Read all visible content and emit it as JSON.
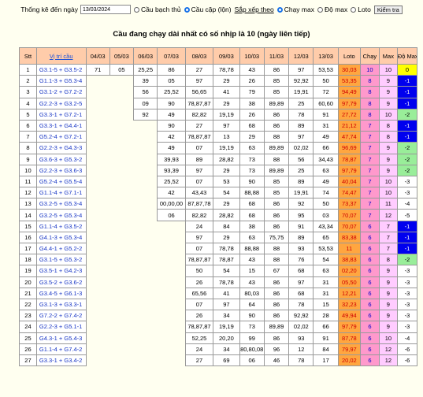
{
  "toolbar": {
    "date_label": "Thống kê đến ngày",
    "date_value": "13/03/2024",
    "options": [
      {
        "label": "Cầu bạch thủ",
        "selected": false
      },
      {
        "label": "Cầu cặp (lộn)",
        "selected": true
      }
    ],
    "sort_label": "Sắp xếp theo",
    "sort_options": [
      {
        "label": "Chạy max",
        "selected": true
      },
      {
        "label": "Độ max",
        "selected": false
      },
      {
        "label": "Loto",
        "selected": false
      }
    ],
    "check_button": "Kiểm tra"
  },
  "title": "Cầu đang chạy dài nhất có số nhịp là 10 (ngày liên tiếp)",
  "headers": [
    "Stt",
    "Vị trí cầu",
    "04/03",
    "05/03",
    "06/03",
    "07/03",
    "08/03",
    "09/03",
    "10/03",
    "11/03",
    "12/03",
    "13/03",
    "Loto",
    "Chạy",
    "Max",
    "Độ Max"
  ],
  "colors": {
    "header": "#ffccaa",
    "loto": "#ffa640",
    "chay": "#ff99cc",
    "max": "#ffccff",
    "yellow": "#ffff00",
    "blue": "#0000ee",
    "green": "#99ee99"
  },
  "rows": [
    {
      "stt": "1",
      "pos": "G3.1-5 + G3.5-2",
      "d": [
        "71",
        "05",
        "25,25",
        "86",
        "27",
        "78,78",
        "43",
        "86",
        "97",
        "53,53"
      ],
      "loto": "30,03",
      "chay": "10",
      "max": "10",
      "dm": "0",
      "dmc": "y"
    },
    {
      "stt": "2",
      "pos": "G1.1-3 + G5.3-4",
      "d": [
        "",
        "",
        "39",
        "05",
        "97",
        "29",
        "26",
        "85",
        "92,92",
        "50"
      ],
      "loto": "53,35",
      "chay": "8",
      "max": "9",
      "dm": "-1",
      "dmc": "b"
    },
    {
      "stt": "3",
      "pos": "G3.1-2 + G7.2-2",
      "d": [
        "",
        "",
        "56",
        "25,52",
        "56,65",
        "41",
        "79",
        "85",
        "19,91",
        "72"
      ],
      "loto": "94,49",
      "chay": "8",
      "max": "9",
      "dm": "-1",
      "dmc": "b"
    },
    {
      "stt": "4",
      "pos": "G2.2-3 + G3.2-5",
      "d": [
        "",
        "",
        "09",
        "90",
        "78,87,87",
        "29",
        "38",
        "89,89",
        "25",
        "60,60"
      ],
      "loto": "97,79",
      "chay": "8",
      "max": "9",
      "dm": "-1",
      "dmc": "b"
    },
    {
      "stt": "5",
      "pos": "G3.3-1 + G7.2-1",
      "d": [
        "",
        "",
        "92",
        "49",
        "82,82",
        "19,19",
        "26",
        "86",
        "78",
        "91"
      ],
      "loto": "27,72",
      "chay": "8",
      "max": "10",
      "dm": "-2",
      "dmc": "g"
    },
    {
      "stt": "6",
      "pos": "G3.3-1 + G4.4-1",
      "d": [
        "",
        "",
        "",
        "90",
        "27",
        "97",
        "68",
        "86",
        "89",
        "31"
      ],
      "loto": "21,12",
      "chay": "7",
      "max": "8",
      "dm": "-1",
      "dmc": "b"
    },
    {
      "stt": "7",
      "pos": "G5.2-4 + G7.2-1",
      "d": [
        "",
        "",
        "",
        "42",
        "78,87,87",
        "13",
        "29",
        "88",
        "97",
        "49"
      ],
      "loto": "47,74",
      "chay": "7",
      "max": "8",
      "dm": "-1",
      "dmc": "b"
    },
    {
      "stt": "8",
      "pos": "G2.2-3 + G4.3-3",
      "d": [
        "",
        "",
        "",
        "49",
        "07",
        "19,19",
        "63",
        "89,89",
        "02,02",
        "66"
      ],
      "loto": "96,69",
      "chay": "7",
      "max": "9",
      "dm": "-2",
      "dmc": "g"
    },
    {
      "stt": "9",
      "pos": "G3.6-3 + G5.3-2",
      "d": [
        "",
        "",
        "",
        "39,93",
        "89",
        "28,82",
        "73",
        "88",
        "56",
        "34,43"
      ],
      "loto": "78,87",
      "chay": "7",
      "max": "9",
      "dm": "-2",
      "dmc": "g"
    },
    {
      "stt": "10",
      "pos": "G2.2-3 + G3.6-3",
      "d": [
        "",
        "",
        "",
        "93,39",
        "97",
        "29",
        "73",
        "89,89",
        "25",
        "63"
      ],
      "loto": "97,79",
      "chay": "7",
      "max": "9",
      "dm": "-2",
      "dmc": "g"
    },
    {
      "stt": "11",
      "pos": "G5.2-4 + G5.5-4",
      "d": [
        "",
        "",
        "",
        "25,52",
        "07",
        "53",
        "90",
        "85",
        "89",
        "49"
      ],
      "loto": "40,04",
      "chay": "7",
      "max": "10",
      "dm": "-3",
      "dmc": "w"
    },
    {
      "stt": "12",
      "pos": "G1.1-4 + G7.1-1",
      "d": [
        "",
        "",
        "",
        "42",
        "43,43",
        "54",
        "88,88",
        "85",
        "19,91",
        "74"
      ],
      "loto": "74,47",
      "chay": "7",
      "max": "10",
      "dm": "-3",
      "dmc": "w"
    },
    {
      "stt": "13",
      "pos": "G3.2-5 + G5.3-4",
      "d": [
        "",
        "",
        "",
        "00,00,00",
        "87,87,78",
        "29",
        "68",
        "86",
        "92",
        "50"
      ],
      "loto": "73,37",
      "chay": "7",
      "max": "11",
      "dm": "-4",
      "dmc": "w"
    },
    {
      "stt": "14",
      "pos": "G3.2-5 + G5.3-4",
      "d": [
        "",
        "",
        "",
        "06",
        "82,82",
        "28,82",
        "68",
        "86",
        "95",
        "03"
      ],
      "loto": "70,07",
      "chay": "7",
      "max": "12",
      "dm": "-5",
      "dmc": "w"
    },
    {
      "stt": "15",
      "pos": "G1.1-4 + G3.5-2",
      "d": [
        "",
        "",
        "",
        "",
        "24",
        "84",
        "38",
        "86",
        "91",
        "43,34"
      ],
      "loto": "70,07",
      "chay": "6",
      "max": "7",
      "dm": "-1",
      "dmc": "b"
    },
    {
      "stt": "16",
      "pos": "G4.1-3 + G5.3-4",
      "d": [
        "",
        "",
        "",
        "",
        "97",
        "29",
        "63",
        "75,75",
        "89",
        "65"
      ],
      "loto": "83,38",
      "chay": "6",
      "max": "7",
      "dm": "-1",
      "dmc": "b"
    },
    {
      "stt": "17",
      "pos": "G4.4-1 + G5.2-2",
      "d": [
        "",
        "",
        "",
        "",
        "07",
        "78,78",
        "88,88",
        "88",
        "93",
        "53,53"
      ],
      "loto": "11",
      "chay": "6",
      "max": "7",
      "dm": "-1",
      "dmc": "b"
    },
    {
      "stt": "18",
      "pos": "G3.1-5 + G5.3-2",
      "d": [
        "",
        "",
        "",
        "",
        "78,87,87",
        "78,87",
        "43",
        "88",
        "76",
        "54"
      ],
      "loto": "38,83",
      "chay": "6",
      "max": "8",
      "dm": "-2",
      "dmc": "g"
    },
    {
      "stt": "19",
      "pos": "G3.5-1 + G4.2-3",
      "d": [
        "",
        "",
        "",
        "",
        "50",
        "54",
        "15",
        "67",
        "68",
        "63"
      ],
      "loto": "02,20",
      "chay": "6",
      "max": "9",
      "dm": "-3",
      "dmc": "w"
    },
    {
      "stt": "20",
      "pos": "G3.5-2 + G3.6-2",
      "d": [
        "",
        "",
        "",
        "",
        "26",
        "78,78",
        "43",
        "86",
        "97",
        "31"
      ],
      "loto": "05,50",
      "chay": "6",
      "max": "9",
      "dm": "-3",
      "dmc": "w"
    },
    {
      "stt": "21",
      "pos": "G3.4-5 + G6.1-3",
      "d": [
        "",
        "",
        "",
        "",
        "65,56",
        "41",
        "80,03",
        "86",
        "68",
        "31"
      ],
      "loto": "12,21",
      "chay": "6",
      "max": "9",
      "dm": "-3",
      "dmc": "w"
    },
    {
      "stt": "22",
      "pos": "G3.1-3 + G3.3-1",
      "d": [
        "",
        "",
        "",
        "",
        "07",
        "97",
        "64",
        "86",
        "78",
        "15"
      ],
      "loto": "32,23",
      "chay": "6",
      "max": "9",
      "dm": "-3",
      "dmc": "w"
    },
    {
      "stt": "23",
      "pos": "G7.2-2 + G7.4-2",
      "d": [
        "",
        "",
        "",
        "",
        "26",
        "34",
        "90",
        "86",
        "92,92",
        "28"
      ],
      "loto": "49,94",
      "chay": "6",
      "max": "9",
      "dm": "-3",
      "dmc": "w"
    },
    {
      "stt": "24",
      "pos": "G2.2-3 + G5.1-1",
      "d": [
        "",
        "",
        "",
        "",
        "78,87,87",
        "19,19",
        "73",
        "89,89",
        "02,02",
        "66"
      ],
      "loto": "97,79",
      "chay": "6",
      "max": "9",
      "dm": "-3",
      "dmc": "w"
    },
    {
      "stt": "25",
      "pos": "G4.3-1 + G5.4-3",
      "d": [
        "",
        "",
        "",
        "",
        "52,25",
        "20,20",
        "99",
        "86",
        "93",
        "91"
      ],
      "loto": "87,78",
      "chay": "6",
      "max": "10",
      "dm": "-4",
      "dmc": "w"
    },
    {
      "stt": "26",
      "pos": "G1.1-4 + G7.4-2",
      "d": [
        "",
        "",
        "",
        "",
        "24",
        "34",
        "80,80,08",
        "96",
        "12",
        "84"
      ],
      "loto": "79,97",
      "chay": "6",
      "max": "12",
      "dm": "-6",
      "dmc": "w"
    },
    {
      "stt": "27",
      "pos": "G3.3-1 + G3.4-2",
      "d": [
        "",
        "",
        "",
        "",
        "27",
        "69",
        "06",
        "46",
        "78",
        "17"
      ],
      "loto": "20,02",
      "chay": "6",
      "max": "12",
      "dm": "-6",
      "dmc": "w"
    }
  ]
}
